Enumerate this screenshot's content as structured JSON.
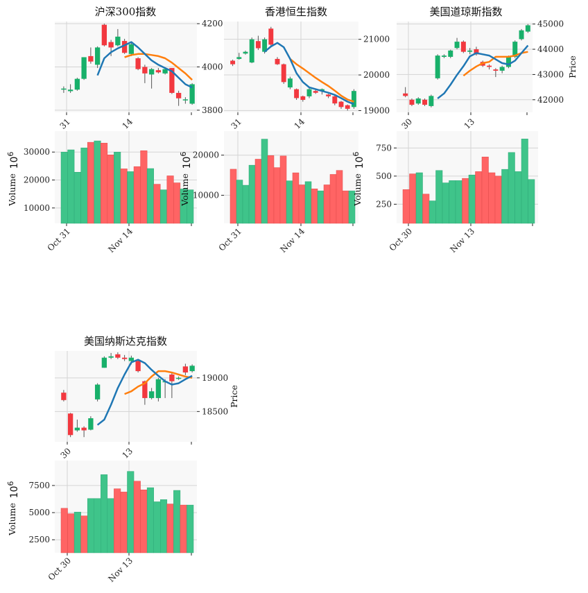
{
  "colors": {
    "up": "#18b06a",
    "down": "#f2383f",
    "vol_up": "#3fc48a",
    "vol_down": "#ff6464",
    "ma_short": "#1f77b4",
    "ma_long": "#ff7f0e",
    "panel_bg": "#f8f8f8",
    "grid": "#d4d4d4"
  },
  "chart_data": [
    {
      "type": "candlestick",
      "title": "沪深300指数",
      "price_ticks": [
        "3800",
        "4000",
        "4200"
      ],
      "price_ylim": [
        3790,
        4210
      ],
      "price_ylabel": "",
      "price_xticks": [
        "31",
        "14"
      ],
      "volume_ylabel": "Volume",
      "volume_multiplier": "10",
      "volume_multiplier_exp": "6",
      "volume_ticks": [
        "10000",
        "20000",
        "30000"
      ],
      "volume_ylim": [
        4500,
        37500
      ],
      "volume_xticks": [
        "Oct 31",
        "Nov 14"
      ],
      "candles": [
        [
          3895,
          3900,
          3880,
          3910
        ],
        [
          3888,
          3895,
          3880,
          3920
        ],
        [
          3895,
          3945,
          3890,
          3950
        ],
        [
          3945,
          4045,
          3940,
          4045
        ],
        [
          4050,
          4025,
          4015,
          4090
        ],
        [
          4010,
          4090,
          3995,
          4095
        ],
        [
          4195,
          4100,
          4095,
          4200
        ],
        [
          4115,
          4090,
          4050,
          4125
        ],
        [
          4100,
          4140,
          4095,
          4175
        ],
        [
          4120,
          4065,
          4060,
          4130
        ],
        [
          4060,
          4105,
          4050,
          4110
        ],
        [
          4040,
          3990,
          3985,
          4045
        ],
        [
          4000,
          3970,
          3925,
          4010
        ],
        [
          3965,
          3990,
          3900,
          3995
        ],
        [
          3985,
          3975,
          3970,
          3995
        ],
        [
          3970,
          3990,
          3965,
          3995
        ],
        [
          3995,
          3880,
          3875,
          3995
        ],
        [
          3880,
          3855,
          3820,
          3890
        ],
        [
          3850,
          3850,
          3830,
          3860
        ],
        [
          3830,
          3920,
          3825,
          3925
        ]
      ],
      "volumes": [
        30000,
        30800,
        22800,
        31500,
        33500,
        34000,
        33200,
        29000,
        30000,
        24000,
        23000,
        24800,
        30500,
        24100,
        18500,
        16500,
        21500,
        19000,
        16800,
        16500
      ],
      "ma_short": [
        null,
        null,
        null,
        null,
        null,
        3961,
        4040,
        4068,
        4086,
        4100,
        4115,
        4090,
        4060,
        4030,
        4010,
        3995,
        3980,
        3950,
        3920,
        3905
      ],
      "ma_long": [
        null,
        null,
        null,
        null,
        null,
        null,
        null,
        null,
        null,
        4045,
        4055,
        4060,
        4060,
        4055,
        4050,
        4040,
        4020,
        3995,
        3970,
        3940
      ]
    },
    {
      "type": "candlestick",
      "title": "香港恒生指数",
      "price_ticks": [
        "19000",
        "20000",
        "21000"
      ],
      "price_ylim": [
        18950,
        21500
      ],
      "price_ylabel": "",
      "price_xticks": [
        "31",
        "14"
      ],
      "volume_ylabel": "Volume",
      "volume_multiplier": "10",
      "volume_multiplier_exp": "6",
      "volume_ticks": [
        "10000",
        "20000"
      ],
      "volume_ylim": [
        3000,
        26000
      ],
      "volume_xticks": [
        "Oct 31",
        "Nov 14"
      ],
      "candles": [
        [
          20400,
          20300,
          20250,
          20430
        ],
        [
          20450,
          20500,
          20430,
          20620
        ],
        [
          20600,
          20650,
          20570,
          20680
        ],
        [
          20350,
          21000,
          20330,
          21050
        ],
        [
          20950,
          20750,
          20700,
          21100
        ],
        [
          20650,
          21000,
          20600,
          21050
        ],
        [
          21300,
          20850,
          20800,
          21350
        ],
        [
          20450,
          20300,
          20280,
          20500
        ],
        [
          20300,
          19800,
          19750,
          20320
        ],
        [
          19650,
          19900,
          19600,
          19950
        ],
        [
          19600,
          19350,
          19300,
          19620
        ],
        [
          19400,
          19300,
          19250,
          19420
        ],
        [
          19400,
          19600,
          19350,
          19650
        ],
        [
          19550,
          19500,
          19470,
          19580
        ],
        [
          19550,
          19600,
          19450,
          19620
        ],
        [
          19450,
          19400,
          19350,
          19470
        ],
        [
          19400,
          19200,
          19150,
          19450
        ],
        [
          19250,
          19100,
          19050,
          19270
        ],
        [
          19150,
          19050,
          19000,
          19170
        ],
        [
          19100,
          19550,
          19050,
          19600
        ]
      ],
      "volumes": [
        16500,
        13800,
        12500,
        17500,
        19000,
        24000,
        19900,
        16900,
        19800,
        13600,
        15600,
        12600,
        13400,
        11600,
        11100,
        12600,
        15200,
        16200,
        11100,
        11100
      ],
      "ma_short": [
        null,
        null,
        null,
        null,
        null,
        20650,
        20800,
        20900,
        20780,
        20450,
        20050,
        19800,
        19650,
        19600,
        19550,
        19500,
        19440,
        19350,
        19250,
        19180
      ],
      "ma_long": [
        null,
        null,
        null,
        null,
        null,
        null,
        null,
        null,
        null,
        20450,
        20300,
        20180,
        20050,
        19920,
        19800,
        19690,
        19560,
        19420,
        19310,
        19250
      ]
    },
    {
      "type": "candlestick",
      "title": "美国道琼斯指数",
      "price_ticks": [
        "42000",
        "43000",
        "44000",
        "45000"
      ],
      "price_ylim": [
        41500,
        45100
      ],
      "price_ylabel": "Price",
      "price_xticks": [
        "30",
        "13"
      ],
      "volume_ylabel": "Volume",
      "volume_multiplier": "10",
      "volume_multiplier_exp": "6",
      "volume_ticks": [
        "250",
        "500",
        "750"
      ],
      "volume_ylim": [
        80,
        900
      ],
      "volume_xticks": [
        "Oct 30",
        "Nov 13"
      ],
      "candles": [
        [
          42250,
          42150,
          42100,
          42500
        ],
        [
          42000,
          41800,
          41750,
          42050
        ],
        [
          41850,
          42050,
          41800,
          42100
        ],
        [
          42000,
          41800,
          41750,
          42050
        ],
        [
          41750,
          42150,
          41700,
          42200
        ],
        [
          42850,
          43750,
          42800,
          43800
        ],
        [
          43700,
          43750,
          43650,
          43800
        ],
        [
          43700,
          43950,
          43650,
          43980
        ],
        [
          44050,
          44300,
          44000,
          44450
        ],
        [
          44300,
          43900,
          43850,
          44350
        ],
        [
          43900,
          43950,
          43800,
          44050
        ],
        [
          44000,
          43800,
          43750,
          44100
        ],
        [
          43500,
          43350,
          43300,
          43550
        ],
        [
          43350,
          43300,
          43200,
          43400
        ],
        [
          43200,
          43150,
          42900,
          43250
        ],
        [
          43150,
          43300,
          43050,
          43350
        ],
        [
          43300,
          43700,
          43250,
          43750
        ],
        [
          43700,
          44300,
          43650,
          44350
        ],
        [
          44400,
          44750,
          44350,
          44800
        ],
        [
          44700,
          44950,
          44650,
          45000
        ]
      ],
      "volumes": [
        380,
        520,
        530,
        340,
        280,
        550,
        440,
        460,
        460,
        480,
        510,
        540,
        670,
        530,
        500,
        560,
        710,
        540,
        830,
        470
      ],
      "ma_short": [
        null,
        null,
        null,
        null,
        null,
        42050,
        42250,
        42600,
        42980,
        43330,
        43720,
        43850,
        43800,
        43750,
        43600,
        43450,
        43400,
        43550,
        43850,
        44150
      ],
      "ma_long": [
        null,
        null,
        null,
        null,
        null,
        null,
        null,
        null,
        null,
        42950,
        43150,
        43320,
        43450,
        43500,
        43700,
        43700,
        43700,
        43750,
        43850,
        43900
      ]
    },
    {
      "type": "candlestick",
      "title": "美国纳斯达克指数",
      "price_ticks": [
        "18500",
        "19000"
      ],
      "price_ylim": [
        18050,
        19400
      ],
      "price_ylabel": "Price",
      "price_xticks": [
        "30",
        "13"
      ],
      "volume_ylabel": "Volume",
      "volume_multiplier": "10",
      "volume_multiplier_exp": "6",
      "volume_ticks": [
        "2500",
        "5000",
        "7500"
      ],
      "volume_ylim": [
        1300,
        9800
      ],
      "volume_xticks": [
        "Oct 30",
        "Nov 13"
      ],
      "candles": [
        [
          18780,
          18670,
          18650,
          18820
        ],
        [
          18470,
          18150,
          18120,
          18480
        ],
        [
          18220,
          18260,
          18200,
          18380
        ],
        [
          18260,
          18220,
          18120,
          18280
        ],
        [
          18230,
          18400,
          18220,
          18430
        ],
        [
          18680,
          18900,
          18650,
          18920
        ],
        [
          19150,
          19300,
          19150,
          19320
        ],
        [
          19300,
          19320,
          19280,
          19370
        ],
        [
          19350,
          19300,
          19280,
          19380
        ],
        [
          19300,
          19280,
          19250,
          19340
        ],
        [
          19250,
          19300,
          19200,
          19330
        ],
        [
          19250,
          19100,
          19080,
          19270
        ],
        [
          18950,
          18700,
          18600,
          18960
        ],
        [
          18700,
          18800,
          18680,
          18850
        ],
        [
          18700,
          18980,
          18650,
          19000
        ],
        [
          18950,
          18950,
          18700,
          18980
        ],
        [
          19050,
          18950,
          18700,
          19070
        ],
        [
          19000,
          19000,
          18970,
          19020
        ],
        [
          19170,
          19080,
          19040,
          19210
        ],
        [
          19100,
          19180,
          19080,
          19200
        ]
      ],
      "volumes": [
        5400,
        4900,
        5050,
        4700,
        6300,
        6300,
        8500,
        6300,
        7200,
        6900,
        8800,
        7900,
        7100,
        7300,
        6000,
        6200,
        5800,
        7050,
        5700,
        5700
      ],
      "ma_short": [
        null,
        null,
        null,
        null,
        null,
        18300,
        18380,
        18600,
        18850,
        19050,
        19230,
        19270,
        19220,
        19120,
        19030,
        18950,
        18900,
        18920,
        18980,
        19030
      ],
      "ma_long": [
        null,
        null,
        null,
        null,
        null,
        null,
        null,
        null,
        null,
        18760,
        18800,
        18870,
        18920,
        19020,
        19100,
        19100,
        19080,
        19050,
        19020,
        19000
      ]
    }
  ]
}
